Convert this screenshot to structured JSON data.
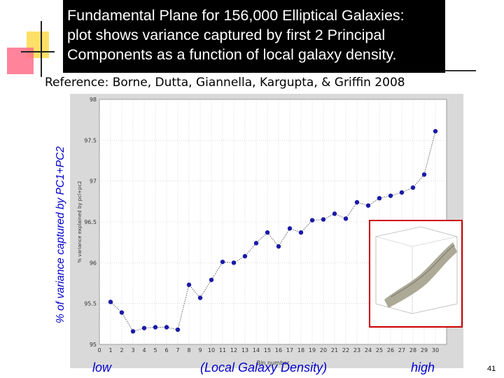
{
  "title": {
    "lines": [
      "Fundamental Plane for 156,000 Elliptical Galaxies:",
      "plot shows variance captured by first 2 Principal",
      "Components as a function of local galaxy density."
    ]
  },
  "reference": "Reference:  Borne, Dutta, Giannella, Kargupta, & Griffin 2008",
  "outer_ylabel": "% of variance captured by PC1+PC2",
  "bottom_labels": {
    "low": "low",
    "middle": "(Local Galaxy Density)",
    "high": "high"
  },
  "page_number": "41",
  "colors": {
    "marker": "#1a1aa8",
    "title_bg": "#000000",
    "title_text": "#ffffff",
    "caption": "#0000cc",
    "inset_border": "#cc0000"
  },
  "chart_data": {
    "type": "line",
    "xlabel": "Bin number",
    "ylabel": "% variance explained by pcl+pc2",
    "xlim": [
      0,
      31
    ],
    "ylim": [
      95,
      98
    ],
    "x_ticks": [
      0,
      1,
      2,
      3,
      4,
      5,
      6,
      7,
      8,
      9,
      10,
      11,
      12,
      13,
      14,
      15,
      16,
      17,
      18,
      19,
      20,
      21,
      22,
      23,
      24,
      25,
      26,
      27,
      28,
      29,
      30
    ],
    "y_ticks": [
      95,
      95.5,
      96,
      96.5,
      97,
      97.5,
      98
    ],
    "y_tick_labels": [
      "95",
      "95.5",
      "96",
      "96.5",
      "97",
      "97.5",
      "98"
    ],
    "grid": true,
    "series": [
      {
        "x": [
          1,
          2,
          3,
          4,
          5,
          6,
          7,
          8,
          9,
          10,
          11,
          12,
          13,
          14,
          15,
          16,
          17,
          18,
          19,
          20,
          21,
          22,
          23,
          24,
          25,
          26,
          27,
          28,
          29,
          30
        ],
        "y": [
          95.52,
          95.39,
          95.16,
          95.2,
          95.21,
          95.21,
          95.18,
          95.73,
          95.57,
          95.79,
          96.01,
          96.0,
          96.08,
          96.24,
          96.37,
          96.2,
          96.42,
          96.37,
          96.52,
          96.53,
          96.6,
          96.54,
          96.74,
          96.7,
          96.79,
          96.82,
          96.86,
          96.92,
          97.08,
          97.61
        ]
      }
    ]
  }
}
